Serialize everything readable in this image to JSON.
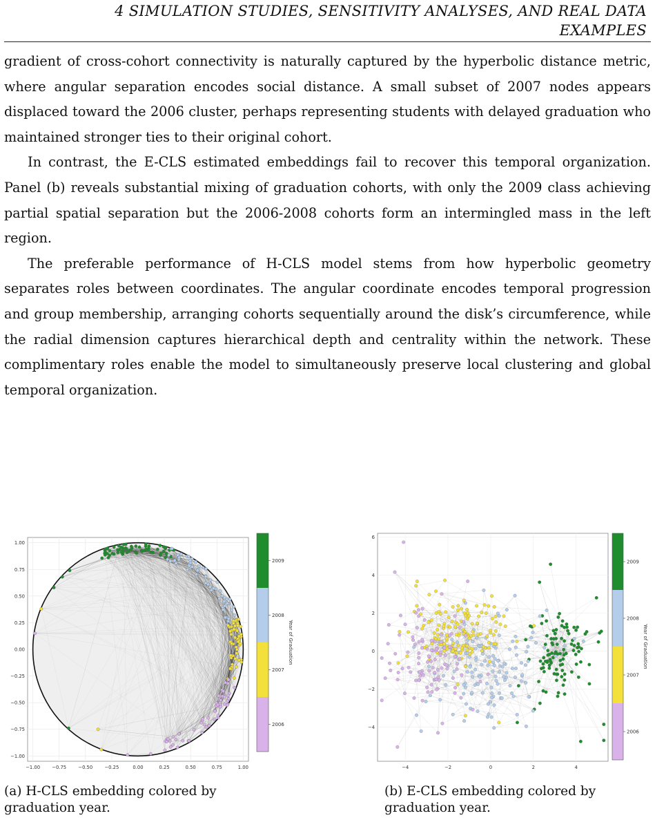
{
  "header": {
    "line1": "4   SIMULATION STUDIES, SENSITIVITY ANALYSES, AND REAL DATA",
    "line2": "EXAMPLES"
  },
  "paragraphs": [
    "gradient of cross-cohort connectivity is naturally captured by the hyperbolic distance metric, where angular separation encodes social distance. A small subset of 2007 nodes appears displaced toward the 2006 cluster, perhaps representing students with delayed graduation who maintained stronger ties to their original cohort.",
    "In contrast, the E-CLS estimated embeddings fail to recover this temporal organization. Panel (b) reveals substantial mixing of graduation cohorts, with only the 2009 class achieving partial spatial separation but the 2006-2008 cohorts form an intermingled mass in the left region.",
    "The preferable performance of H-CLS model stems from how hyperbolic geometry separates roles between coordinates. The angular coordinate encodes temporal progression and group membership, arranging cohorts sequentially around the disk’s circumference, while the radial dimension captures hierarchical depth and centrality within the network. These complimentary roles enable the model to simultaneously preserve local clustering and global temporal organization."
  ],
  "colors": {
    "y2006": "#d9b2ea",
    "y2007": "#f3e03b",
    "y2008": "#b3cdea",
    "y2009": "#1f8c2e"
  },
  "chart_data": [
    {
      "type": "scatter",
      "caption_label": "(a)",
      "caption": "H-CLS embedding colored by graduation year.",
      "xlim": [
        -1.05,
        1.05
      ],
      "ylim": [
        -1.05,
        1.05
      ],
      "x_ticks": [
        "−1.00",
        "−0.75",
        "−0.50",
        "−0.25",
        "0.00",
        "0.25",
        "0.50",
        "0.75",
        "1.00"
      ],
      "y_ticks": [
        "1.00",
        "0.75",
        "0.50",
        "0.25",
        "0.00",
        "−0.25",
        "−0.50",
        "−0.75",
        "−1.00"
      ],
      "grid": true,
      "colorbar": {
        "label": "Year of Graduation",
        "ticks": [
          "2009",
          "2008",
          "2007",
          "2006"
        ]
      },
      "groups": [
        {
          "year": "2009",
          "angle_range_deg": [
            70,
            112
          ],
          "radius_range": [
            0.9,
            1.0
          ],
          "count": 70
        },
        {
          "year": "2008",
          "angle_range_deg": [
            15,
            72
          ],
          "radius_range": [
            0.88,
            1.0
          ],
          "count": 60
        },
        {
          "year": "2007",
          "angle_range_deg": [
            -18,
            18
          ],
          "radius_range": [
            0.88,
            1.0
          ],
          "count": 55
        },
        {
          "year": "2006",
          "angle_range_deg": [
            -75,
            -18
          ],
          "radius_range": [
            0.88,
            1.0
          ],
          "count": 55
        }
      ]
    },
    {
      "type": "scatter",
      "caption_label": "(b)",
      "caption": "E-CLS embedding colored by graduation year.",
      "xlim": [
        -5.3,
        5.5
      ],
      "ylim": [
        -5.8,
        6.2
      ],
      "x_ticks": [
        "−4",
        "−2",
        "0",
        "2",
        "4"
      ],
      "x_tick_values": [
        -4,
        -2,
        0,
        2,
        4
      ],
      "y_ticks": [
        "6",
        "4",
        "2",
        "0",
        "−2",
        "−4"
      ],
      "y_tick_values": [
        6,
        4,
        2,
        0,
        -2,
        -4
      ],
      "grid": true,
      "colorbar": {
        "label": "Year of Graduation",
        "ticks": [
          "2009",
          "2008",
          "2007",
          "2006"
        ]
      },
      "groups": [
        {
          "year": "2009",
          "center": [
            3.2,
            0.0
          ],
          "spread": [
            0.7,
            1.0
          ],
          "count": 110
        },
        {
          "year": "2008",
          "center": [
            -0.2,
            -1.0
          ],
          "spread": [
            1.2,
            1.1
          ],
          "count": 150
        },
        {
          "year": "2007",
          "center": [
            -1.5,
            1.0
          ],
          "spread": [
            1.0,
            0.9
          ],
          "count": 150
        },
        {
          "year": "2006",
          "center": [
            -2.8,
            -0.5
          ],
          "spread": [
            1.0,
            1.2
          ],
          "count": 110
        }
      ]
    }
  ]
}
